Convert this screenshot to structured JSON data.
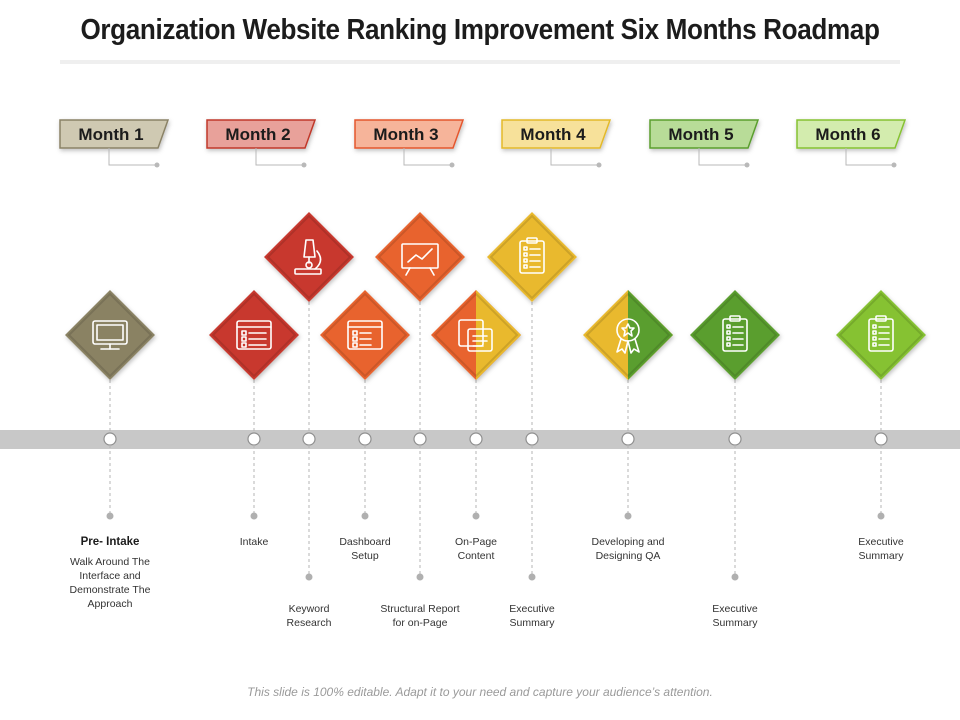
{
  "title": "Organization Website Ranking Improvement Six Months Roadmap",
  "footer": "This slide is 100% editable. Adapt it to your need and capture your audience’s attention.",
  "months": [
    {
      "label": "Month 1",
      "color": "#cfc9b2",
      "border": "#8a8266"
    },
    {
      "label": "Month 2",
      "color": "#e8a19a",
      "border": "#c0392b"
    },
    {
      "label": "Month 3",
      "color": "#f6b49a",
      "border": "#e4572e"
    },
    {
      "label": "Month 4",
      "color": "#f7e19a",
      "border": "#e3b92a"
    },
    {
      "label": "Month 5",
      "color": "#b8dc98",
      "border": "#5a9e2f"
    },
    {
      "label": "Month 6",
      "color": "#d3ecae",
      "border": "#86c232"
    }
  ],
  "milestones": [
    {
      "icon": "monitor-icon",
      "color": "#8a8264",
      "level": "low",
      "label_pos": "upper",
      "title": "Pre- Intake",
      "lines": [
        "Walk Around The",
        "Interface and",
        "Demonstrate  The",
        "Approach"
      ]
    },
    {
      "icon": "checklist-window-icon",
      "color": "#c8372d",
      "level": "low",
      "label_pos": "upper",
      "title": "",
      "lines": [
        "Intake"
      ]
    },
    {
      "icon": "microscope-icon",
      "color": "#c8372d",
      "level": "high",
      "label_pos": "lower",
      "title": "",
      "lines": [
        "Keyword",
        "Research"
      ]
    },
    {
      "icon": "browser-window-icon",
      "color": "#e8632d",
      "level": "low",
      "label_pos": "upper",
      "title": "",
      "lines": [
        "Dashboard",
        "Setup"
      ]
    },
    {
      "icon": "presentation-chart-icon",
      "color": "#e8632d",
      "level": "high",
      "label_pos": "lower",
      "title": "",
      "lines": [
        "Structural Report",
        "for on-Page"
      ]
    },
    {
      "icon": "documents-icon",
      "color": "#e8632d",
      "color2": "#e9b92d",
      "level": "low",
      "label_pos": "upper",
      "title": "",
      "lines": [
        "On-Page",
        "Content"
      ]
    },
    {
      "icon": "clipboard-icon",
      "color": "#e9b92d",
      "level": "high",
      "label_pos": "lower",
      "title": "",
      "lines": [
        "Executive",
        "Summary"
      ]
    },
    {
      "icon": "award-ribbon-icon",
      "color": "#e9b92d",
      "color2": "#5a9e2f",
      "level": "low",
      "label_pos": "upper",
      "title": "",
      "lines": [
        "Developing and",
        "Designing QA"
      ]
    },
    {
      "icon": "clipboard-icon",
      "color": "#5a9e2f",
      "level": "low",
      "label_pos": "lower",
      "title": "",
      "lines": [
        "Executive",
        "Summary"
      ]
    },
    {
      "icon": "clipboard-icon",
      "color": "#86c232",
      "level": "low",
      "label_pos": "upper",
      "title": "",
      "lines": [
        "Executive",
        "Summary"
      ]
    }
  ]
}
